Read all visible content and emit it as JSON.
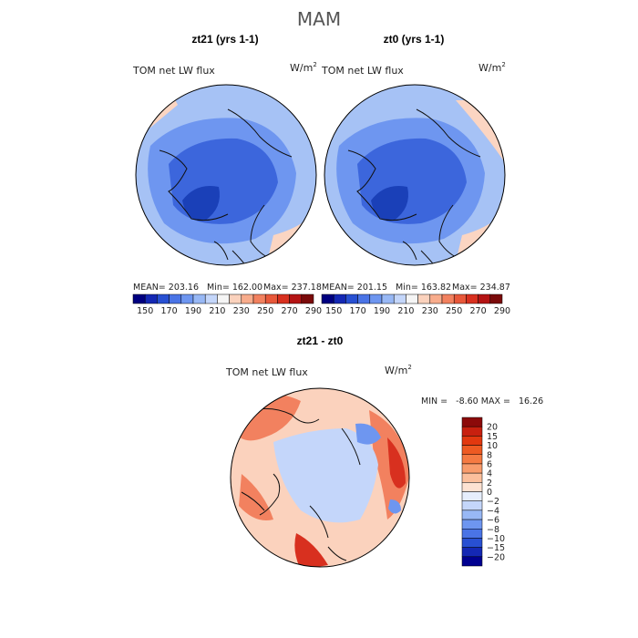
{
  "figure": {
    "season": "MAM"
  },
  "panels": [
    {
      "title": "zt21 (yrs 1-1)",
      "variable": "TOM net LW flux",
      "units_base": "W/m",
      "units_exp": "2",
      "stats": {
        "mean_label": "MEAN= 203.16",
        "min_label": "Min= 162.00",
        "max_label": "Max= 237.18"
      }
    },
    {
      "title": "zt0 (yrs 1-1)",
      "variable": "TOM net LW flux",
      "units_base": "W/m",
      "units_exp": "2",
      "stats": {
        "mean_label": "MEAN= 201.15",
        "min_label": "Min= 163.82",
        "max_label": "Max= 234.87"
      }
    }
  ],
  "abs_colorbar": {
    "ticks": [
      "150",
      "170",
      "190",
      "210",
      "230",
      "250",
      "270",
      "290"
    ],
    "colors": [
      "#000080",
      "#1428b4",
      "#2850d2",
      "#4a74e6",
      "#6e96f0",
      "#98b8f5",
      "#c4d6fa",
      "#f5f5f5",
      "#fbd2bd",
      "#f8ac8c",
      "#f2815f",
      "#e8583a",
      "#d8301f",
      "#b41414",
      "#7a0a0a"
    ]
  },
  "diff_panel": {
    "title": "zt21 - zt0",
    "variable": "TOM net LW flux",
    "units_base": "W/m",
    "units_exp": "2",
    "minmax_label": "MIN =   -8.60 MAX =   16.26",
    "colorbar": {
      "labels": [
        "20",
        "15",
        "10",
        "8",
        "6",
        "4",
        "2",
        "0",
        "−2",
        "−4",
        "−6",
        "−8",
        "−10",
        "−15",
        "−20"
      ],
      "colors": [
        "#8c0a0a",
        "#c8200f",
        "#e2380f",
        "#ee5a22",
        "#f57a42",
        "#f89c6c",
        "#fbbf9c",
        "#fde2d2",
        "#e6eefc",
        "#c4d6fa",
        "#98b8f5",
        "#6e96f0",
        "#4a74e6",
        "#2850d2",
        "#1428b4",
        "#000090"
      ]
    }
  },
  "colors": {
    "abs_bg": "#a6c2f5",
    "abs_mid": "#6e96f0",
    "abs_deep": "#3c66dc",
    "abs_deepest": "#1a40b8",
    "abs_light": "#dbe6fb",
    "abs_warm": "#fbd5c2",
    "diff_bg": "#fbd2bd",
    "diff_warm": "#f2815f",
    "diff_hot": "#d8301f",
    "diff_cool": "#c4d6fa",
    "diff_blue": "#6e96f0",
    "coast": "#111111"
  }
}
